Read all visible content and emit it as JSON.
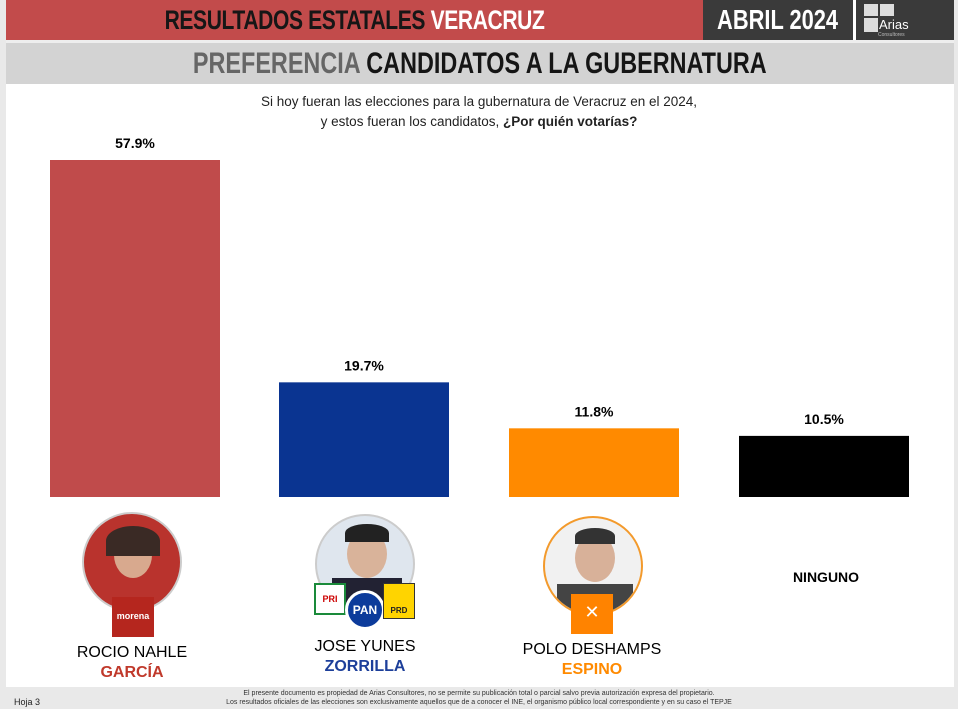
{
  "header": {
    "title_dark": "RESULTADOS ESTATALES",
    "title_light": "VERACRUZ",
    "date": "ABRIL 2024",
    "logo_text": "Arias",
    "logo_sub": "Consultores"
  },
  "subheader": {
    "part1": "PREFERENCIA",
    "part2": "CANDIDATOS A LA GUBERNATURA"
  },
  "question": {
    "line1": "Si hoy fueran las elecciones para la gubernatura de Veracruz en el 2024,",
    "line2_plain": "y estos fueran los candidatos,",
    "line2_bold": "¿Por quién votarías?"
  },
  "chart_data": {
    "type": "bar",
    "title": "Si hoy fueran las elecciones para la gubernatura de Veracruz en el 2024, y estos fueran los candidatos, ¿Por quién votarías?",
    "categories": [
      "ROCIO NAHLE GARCÍA",
      "JOSE YUNES ZORRILLA",
      "POLO DESHAMPS ESPINO",
      "NINGUNO"
    ],
    "values": [
      57.9,
      19.7,
      11.8,
      10.5
    ],
    "labels": [
      "57.9%",
      "19.7%",
      "11.8%",
      "10.5%"
    ],
    "colors": [
      "#c04b4b",
      "#0a3491",
      "#ff8a00",
      "#000000"
    ],
    "ylim": [
      0,
      60
    ]
  },
  "candidates": [
    {
      "first": "ROCIO NAHLE",
      "last": "GARCÍA",
      "last_color": "#c0392b",
      "party": "morena"
    },
    {
      "first": "JOSE YUNES",
      "last": "ZORRILLA",
      "last_color": "#1d3f9a",
      "party": "PAN"
    },
    {
      "first": "POLO DESHAMPS",
      "last": "ESPINO",
      "last_color": "#ff8a00",
      "party": "MC"
    },
    {
      "first": "NINGUNO"
    }
  ],
  "parties": {
    "pri": "PRI",
    "pan": "PAN",
    "prd": "PRD",
    "morena": "morena"
  },
  "footer": {
    "page": "Hoja 3",
    "line1": "El presente documento es propiedad de Arias Consultores, no se permite su publicación total o parcial salvo previa autorización expresa del propietario.",
    "line2": "Los resultados oficiales de las elecciones son exclusivamente aquellos que de a conocer el INE, el organismo público local correspondiente  y en su caso el TEPJE"
  }
}
